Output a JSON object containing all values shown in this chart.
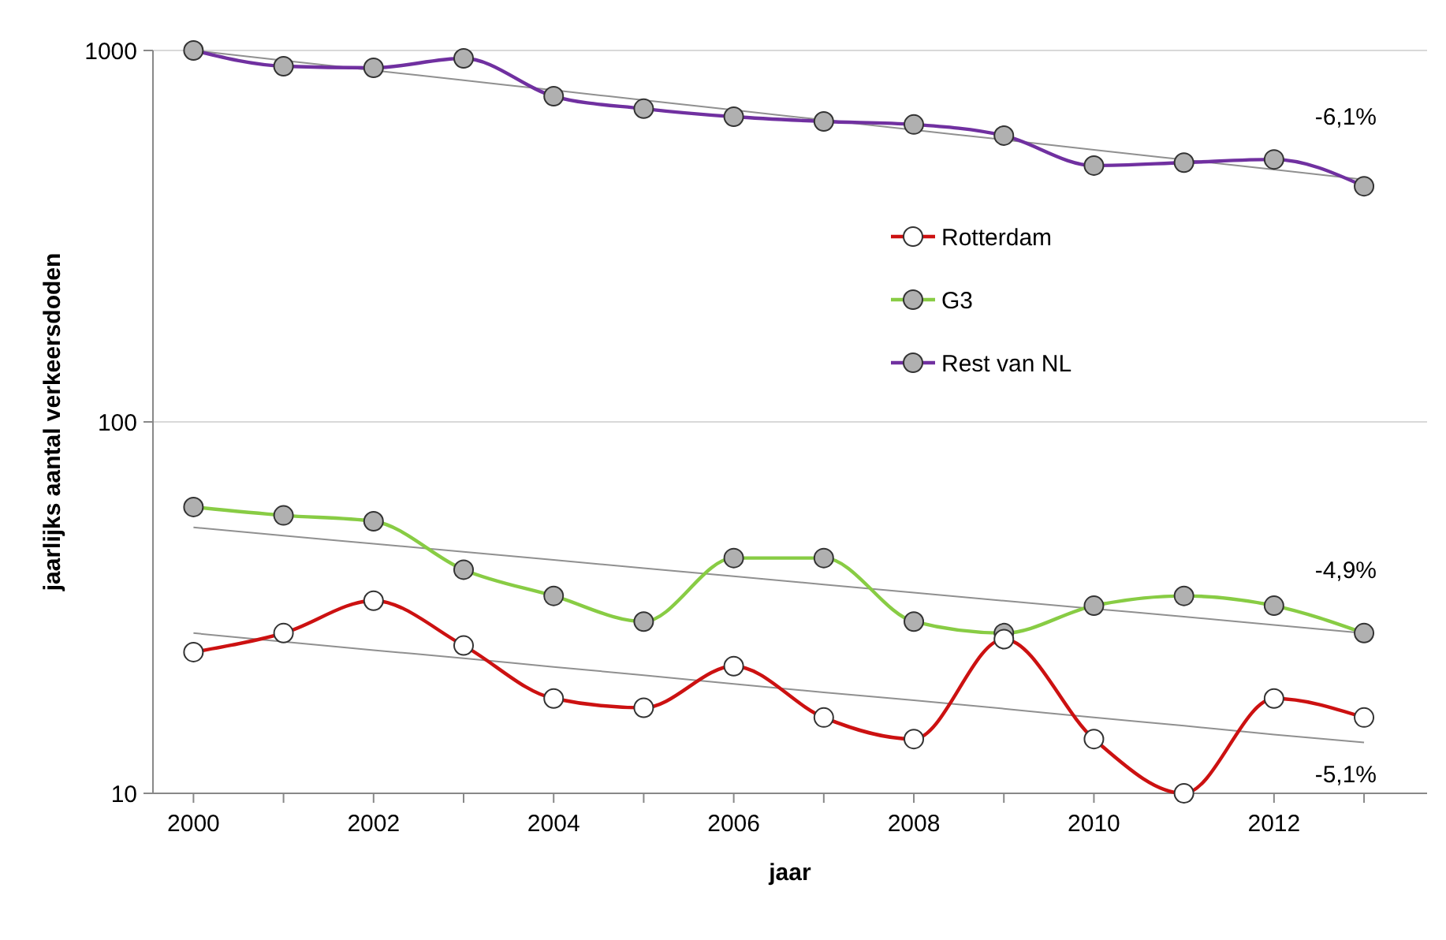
{
  "chart_data": {
    "type": "line",
    "xlabel": "jaar",
    "ylabel": "jaarlijks aantal verkeersdoden",
    "x": [
      2000,
      2001,
      2002,
      2003,
      2004,
      2005,
      2006,
      2007,
      2008,
      2009,
      2010,
      2011,
      2012,
      2013
    ],
    "series": [
      {
        "name": "Rotterdam",
        "color": "#cc1111",
        "marker": "circle",
        "colors": [
          "#ffffff",
          "#ffffff",
          "#ffffff",
          "#ffffff",
          "#ffffff",
          "#ffffff",
          "#ffffff",
          "#ffffff",
          "#ffffff",
          "#ffffff",
          "#ffffff",
          "#ffffff",
          "#ffffff",
          "#ffffff"
        ],
        "values": [
          24,
          27,
          33,
          25,
          18,
          17,
          22,
          16,
          14,
          26,
          14,
          10,
          18,
          16
        ]
      },
      {
        "name": "G3",
        "color": "#88cc44",
        "marker": "circle",
        "colors": [
          "#b0b0b0",
          "#b0b0b0",
          "#b0b0b0",
          "#b0b0b0",
          "#b0b0b0",
          "#b0b0b0",
          "#b0b0b0",
          "#b0b0b0",
          "#b0b0b0",
          "#b0b0b0",
          "#b0b0b0",
          "#b0b0b0",
          "#b0b0b0",
          "#b0b0b0"
        ],
        "values": [
          59,
          56,
          54,
          40,
          34,
          29,
          43,
          43,
          29,
          27,
          32,
          34,
          32,
          27
        ]
      },
      {
        "name": "Rest van NL",
        "color": "#7030a0",
        "marker": "circle",
        "colors": [
          "#b0b0b0",
          "#b0b0b0",
          "#b0b0b0",
          "#b0b0b0",
          "#b0b0b0",
          "#b0b0b0",
          "#b0b0b0",
          "#b0b0b0",
          "#b0b0b0",
          "#b0b0b0",
          "#b0b0b0",
          "#b0b0b0",
          "#b0b0b0",
          "#b0b0b0"
        ],
        "values": [
          1000,
          907,
          898,
          952,
          753,
          697,
          663,
          644,
          632,
          590,
          490,
          499,
          509,
          431
        ]
      },
      {
        "type": "line",
        "color": "#909090",
        "marker": "none",
        "values": [
          1000,
          940,
          884,
          831,
          782,
          735,
          691,
          650,
          611,
          575,
          540,
          508,
          478,
          449
        ]
      },
      {
        "type": "line",
        "color": "#909090",
        "marker": "none",
        "values": [
          52,
          49.4,
          47,
          44.7,
          42.5,
          40.4,
          38.4,
          36.5,
          34.7,
          33,
          31.4,
          29.9,
          28.4,
          27
        ]
      },
      {
        "type": "line",
        "color": "#909090",
        "marker": "none",
        "values": [
          27,
          25.6,
          24.3,
          23.1,
          21.9,
          20.8,
          19.7,
          18.7,
          17.8,
          16.9,
          16,
          15.2,
          14.4,
          13.7
        ]
      }
    ],
    "annotations": [
      "-6,1%",
      "-4,9%",
      "-5,1%"
    ],
    "log": "y",
    "xlim": [
      1999.55,
      2013.7
    ],
    "ylim": [
      10,
      1000
    ],
    "xticks": [
      2000,
      {
        "value": 2001,
        "label": null
      },
      2002,
      {
        "value": 2003,
        "label": null
      },
      2004,
      {
        "value": 2005,
        "label": null
      },
      2006,
      {
        "value": 2007,
        "label": null
      },
      2008,
      {
        "value": 2009,
        "label": null
      },
      2010,
      {
        "value": 2011,
        "label": null
      },
      2012,
      {
        "value": 2013,
        "label": null
      }
    ],
    "yticks": [
      10,
      100,
      1000
    ],
    "grid": "y",
    "legend": "right"
  }
}
